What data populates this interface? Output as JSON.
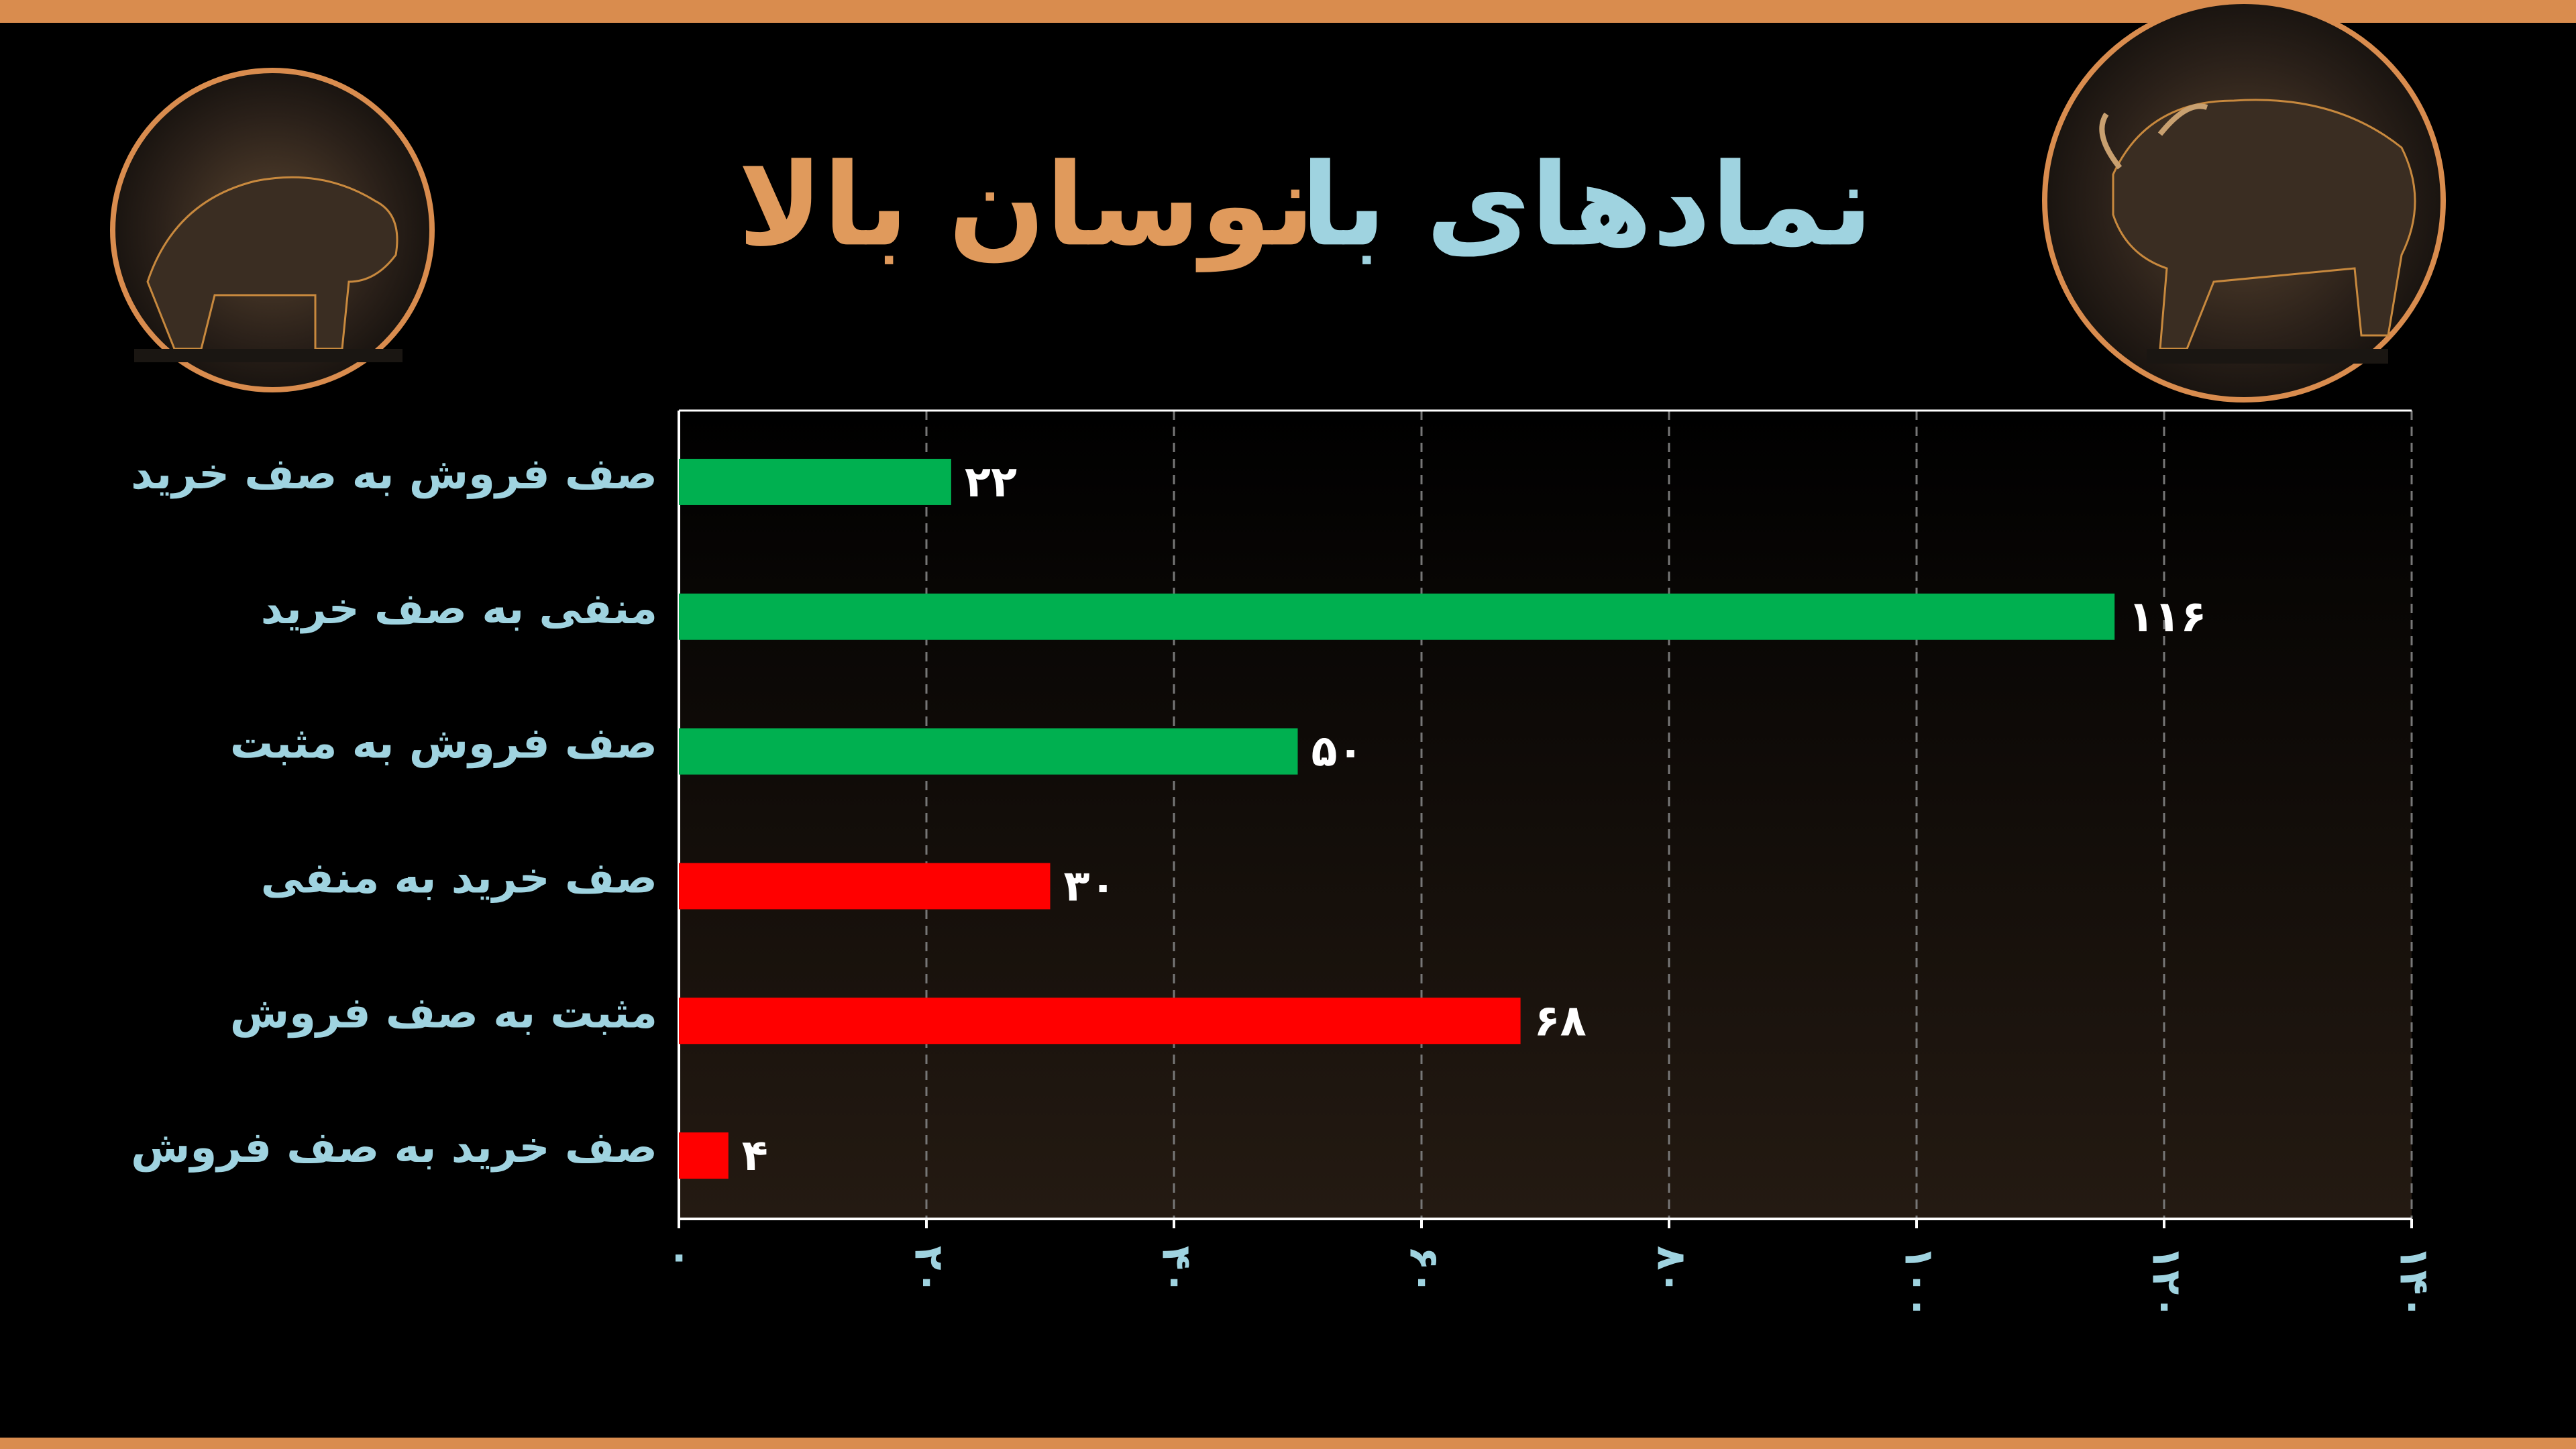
{
  "chart_data": {
    "type": "bar",
    "orientation": "horizontal",
    "title_parts": [
      "نمادهای با",
      "نوسان بالا"
    ],
    "title_colors": [
      "#9fd3e0",
      "#e09a5c"
    ],
    "categories": [
      "صف فروش به صف خرید",
      "منفی به صف خرید",
      "صف فروش به مثبت",
      "صف خرید به منفی",
      "مثبت به صف فروش",
      "صف خرید به صف فروش"
    ],
    "values": [
      22,
      116,
      50,
      30,
      68,
      4
    ],
    "value_labels": [
      "۲۲",
      "۱۱۶",
      "۵۰",
      "۳۰",
      "۶۸",
      "۴"
    ],
    "colors": [
      "#00b050",
      "#00b050",
      "#00b050",
      "#ff0000",
      "#ff0000",
      "#ff0000"
    ],
    "xlim": [
      0,
      140
    ],
    "xticks": [
      {
        "value": 0,
        "label": "۰"
      },
      {
        "value": 20,
        "label": "۲۰"
      },
      {
        "value": 40,
        "label": "۴۰"
      },
      {
        "value": 60,
        "label": "۶۰"
      },
      {
        "value": 80,
        "label": "۸۰"
      },
      {
        "value": 100,
        "label": "۱۰۰"
      },
      {
        "value": 120,
        "label": "۱۲۰"
      },
      {
        "value": 140,
        "label": "۱۴۰"
      }
    ],
    "grid": true
  }
}
